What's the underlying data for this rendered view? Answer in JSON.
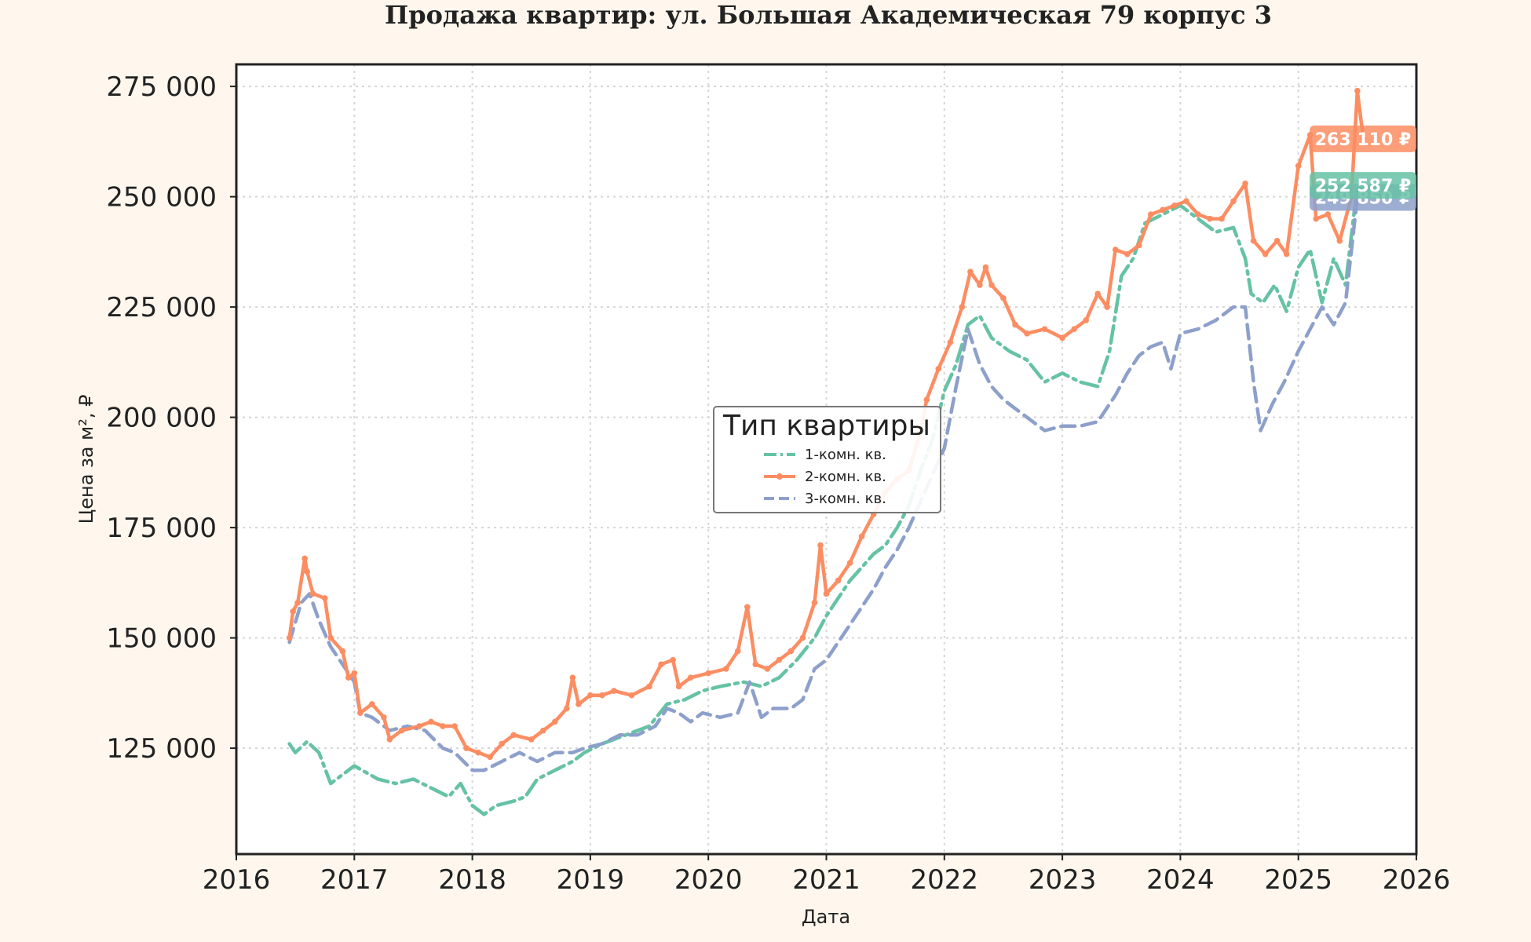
{
  "chart_data": {
    "type": "line",
    "title": "Продажа квартир: ул. Большая Академическая 79 корпус 3",
    "xlabel": "Дата",
    "ylabel": "Цена за м², ₽",
    "xlim": [
      2016.0,
      2026.0
    ],
    "ylim": [
      101000,
      280000
    ],
    "x_ticks": [
      "2016",
      "2017",
      "2018",
      "2019",
      "2020",
      "2021",
      "2022",
      "2023",
      "2024",
      "2025",
      "2026"
    ],
    "y_ticks": [
      "125 000",
      "150 000",
      "175 000",
      "200 000",
      "225 000",
      "250 000",
      "275 000"
    ],
    "grid": true,
    "legend": {
      "title": "Тип квартиры",
      "placement": "center"
    },
    "series": [
      {
        "name": "1-комн. кв.",
        "color": "#66c2a5",
        "style": "dashdot",
        "end_label": "252 587 ₽",
        "points": [
          [
            2016.45,
            126000
          ],
          [
            2016.5,
            124000
          ],
          [
            2016.6,
            126500
          ],
          [
            2016.7,
            124000
          ],
          [
            2016.8,
            117000
          ],
          [
            2016.9,
            119000
          ],
          [
            2017.0,
            121000
          ],
          [
            2017.2,
            118000
          ],
          [
            2017.35,
            117000
          ],
          [
            2017.5,
            118000
          ],
          [
            2017.65,
            116000
          ],
          [
            2017.8,
            114000
          ],
          [
            2017.9,
            117000
          ],
          [
            2018.0,
            112000
          ],
          [
            2018.1,
            110000
          ],
          [
            2018.2,
            112000
          ],
          [
            2018.35,
            113000
          ],
          [
            2018.45,
            114000
          ],
          [
            2018.55,
            118000
          ],
          [
            2018.7,
            120000
          ],
          [
            2018.85,
            122000
          ],
          [
            2018.95,
            124000
          ],
          [
            2019.1,
            126000
          ],
          [
            2019.3,
            128000
          ],
          [
            2019.5,
            130000
          ],
          [
            2019.65,
            135000
          ],
          [
            2019.8,
            136000
          ],
          [
            2019.95,
            138000
          ],
          [
            2020.1,
            139000
          ],
          [
            2020.3,
            140000
          ],
          [
            2020.45,
            139000
          ],
          [
            2020.6,
            141000
          ],
          [
            2020.75,
            145000
          ],
          [
            2020.9,
            150000
          ],
          [
            2021.0,
            155000
          ],
          [
            2021.1,
            159000
          ],
          [
            2021.2,
            163000
          ],
          [
            2021.3,
            166000
          ],
          [
            2021.4,
            169000
          ],
          [
            2021.5,
            171000
          ],
          [
            2021.6,
            175000
          ],
          [
            2021.7,
            180000
          ],
          [
            2021.8,
            188000
          ],
          [
            2021.9,
            195000
          ],
          [
            2022.0,
            206000
          ],
          [
            2022.1,
            212000
          ],
          [
            2022.2,
            221000
          ],
          [
            2022.3,
            223000
          ],
          [
            2022.4,
            218000
          ],
          [
            2022.55,
            215000
          ],
          [
            2022.7,
            213000
          ],
          [
            2022.85,
            208000
          ],
          [
            2023.0,
            210000
          ],
          [
            2023.15,
            208000
          ],
          [
            2023.3,
            207000
          ],
          [
            2023.4,
            215000
          ],
          [
            2023.5,
            232000
          ],
          [
            2023.6,
            236000
          ],
          [
            2023.7,
            244000
          ],
          [
            2023.85,
            246000
          ],
          [
            2024.0,
            248000
          ],
          [
            2024.15,
            245000
          ],
          [
            2024.3,
            242000
          ],
          [
            2024.45,
            243000
          ],
          [
            2024.55,
            236000
          ],
          [
            2024.6,
            228000
          ],
          [
            2024.7,
            226000
          ],
          [
            2024.8,
            230000
          ],
          [
            2024.9,
            224000
          ],
          [
            2025.0,
            234000
          ],
          [
            2025.1,
            238000
          ],
          [
            2025.2,
            226000
          ],
          [
            2025.3,
            236000
          ],
          [
            2025.4,
            230000
          ],
          [
            2025.5,
            252587
          ]
        ]
      },
      {
        "name": "2-комн. кв.",
        "color": "#fc8d62",
        "style": "solid-marker",
        "end_label": "263 110 ₽",
        "points": [
          [
            2016.45,
            150000
          ],
          [
            2016.48,
            156000
          ],
          [
            2016.52,
            158000
          ],
          [
            2016.58,
            168000
          ],
          [
            2016.6,
            165000
          ],
          [
            2016.65,
            160000
          ],
          [
            2016.75,
            159000
          ],
          [
            2016.8,
            150000
          ],
          [
            2016.9,
            147000
          ],
          [
            2016.95,
            141000
          ],
          [
            2017.0,
            142000
          ],
          [
            2017.05,
            133000
          ],
          [
            2017.15,
            135000
          ],
          [
            2017.25,
            132000
          ],
          [
            2017.3,
            127000
          ],
          [
            2017.4,
            129000
          ],
          [
            2017.55,
            130000
          ],
          [
            2017.65,
            131000
          ],
          [
            2017.75,
            130000
          ],
          [
            2017.85,
            130000
          ],
          [
            2017.95,
            125000
          ],
          [
            2018.05,
            124000
          ],
          [
            2018.15,
            123000
          ],
          [
            2018.25,
            126000
          ],
          [
            2018.35,
            128000
          ],
          [
            2018.5,
            127000
          ],
          [
            2018.6,
            129000
          ],
          [
            2018.7,
            131000
          ],
          [
            2018.8,
            134000
          ],
          [
            2018.85,
            141000
          ],
          [
            2018.9,
            135000
          ],
          [
            2019.0,
            137000
          ],
          [
            2019.1,
            137000
          ],
          [
            2019.2,
            138000
          ],
          [
            2019.35,
            137000
          ],
          [
            2019.5,
            139000
          ],
          [
            2019.6,
            144000
          ],
          [
            2019.7,
            145000
          ],
          [
            2019.75,
            139000
          ],
          [
            2019.85,
            141000
          ],
          [
            2020.0,
            142000
          ],
          [
            2020.15,
            143000
          ],
          [
            2020.25,
            147000
          ],
          [
            2020.33,
            157000
          ],
          [
            2020.4,
            144000
          ],
          [
            2020.5,
            143000
          ],
          [
            2020.6,
            145000
          ],
          [
            2020.7,
            147000
          ],
          [
            2020.8,
            150000
          ],
          [
            2020.9,
            158000
          ],
          [
            2020.95,
            171000
          ],
          [
            2021.0,
            160000
          ],
          [
            2021.1,
            163000
          ],
          [
            2021.2,
            167000
          ],
          [
            2021.3,
            173000
          ],
          [
            2021.4,
            178000
          ],
          [
            2021.5,
            183000
          ],
          [
            2021.6,
            186000
          ],
          [
            2021.7,
            188000
          ],
          [
            2021.8,
            197000
          ],
          [
            2021.85,
            204000
          ],
          [
            2021.95,
            211000
          ],
          [
            2022.05,
            217000
          ],
          [
            2022.15,
            225000
          ],
          [
            2022.22,
            233000
          ],
          [
            2022.3,
            230000
          ],
          [
            2022.35,
            234000
          ],
          [
            2022.4,
            230000
          ],
          [
            2022.5,
            227000
          ],
          [
            2022.6,
            221000
          ],
          [
            2022.7,
            219000
          ],
          [
            2022.85,
            220000
          ],
          [
            2023.0,
            218000
          ],
          [
            2023.1,
            220000
          ],
          [
            2023.2,
            222000
          ],
          [
            2023.3,
            228000
          ],
          [
            2023.38,
            225000
          ],
          [
            2023.45,
            238000
          ],
          [
            2023.55,
            237000
          ],
          [
            2023.65,
            239000
          ],
          [
            2023.75,
            246000
          ],
          [
            2023.85,
            247000
          ],
          [
            2023.95,
            248000
          ],
          [
            2024.05,
            249000
          ],
          [
            2024.15,
            246000
          ],
          [
            2024.25,
            245000
          ],
          [
            2024.35,
            245000
          ],
          [
            2024.45,
            249000
          ],
          [
            2024.55,
            253000
          ],
          [
            2024.62,
            240000
          ],
          [
            2024.72,
            237000
          ],
          [
            2024.82,
            240000
          ],
          [
            2024.9,
            237000
          ],
          [
            2025.0,
            257000
          ],
          [
            2025.1,
            264000
          ],
          [
            2025.15,
            245000
          ],
          [
            2025.25,
            246000
          ],
          [
            2025.35,
            240000
          ],
          [
            2025.45,
            250000
          ],
          [
            2025.5,
            274000
          ],
          [
            2025.55,
            263110
          ]
        ]
      },
      {
        "name": "3-комн. кв.",
        "color": "#8da0cb",
        "style": "dashed",
        "end_label": "249 850 ₽",
        "points": [
          [
            2016.45,
            149000
          ],
          [
            2016.55,
            158000
          ],
          [
            2016.62,
            160000
          ],
          [
            2016.7,
            154000
          ],
          [
            2016.8,
            148000
          ],
          [
            2016.9,
            144000
          ],
          [
            2017.0,
            140000
          ],
          [
            2017.05,
            133000
          ],
          [
            2017.15,
            132000
          ],
          [
            2017.3,
            129000
          ],
          [
            2017.45,
            130000
          ],
          [
            2017.6,
            129000
          ],
          [
            2017.75,
            125000
          ],
          [
            2017.85,
            124000
          ],
          [
            2018.0,
            120000
          ],
          [
            2018.1,
            120000
          ],
          [
            2018.25,
            122000
          ],
          [
            2018.4,
            124000
          ],
          [
            2018.55,
            122000
          ],
          [
            2018.7,
            124000
          ],
          [
            2018.85,
            124000
          ],
          [
            2018.95,
            125000
          ],
          [
            2019.1,
            126000
          ],
          [
            2019.25,
            128000
          ],
          [
            2019.4,
            128000
          ],
          [
            2019.55,
            130000
          ],
          [
            2019.65,
            134000
          ],
          [
            2019.75,
            133000
          ],
          [
            2019.85,
            131000
          ],
          [
            2019.95,
            133000
          ],
          [
            2020.1,
            132000
          ],
          [
            2020.25,
            133000
          ],
          [
            2020.35,
            140000
          ],
          [
            2020.45,
            132000
          ],
          [
            2020.55,
            134000
          ],
          [
            2020.7,
            134000
          ],
          [
            2020.8,
            136000
          ],
          [
            2020.9,
            143000
          ],
          [
            2021.0,
            145000
          ],
          [
            2021.1,
            149000
          ],
          [
            2021.2,
            153000
          ],
          [
            2021.3,
            157000
          ],
          [
            2021.4,
            161000
          ],
          [
            2021.5,
            166000
          ],
          [
            2021.6,
            170000
          ],
          [
            2021.7,
            175000
          ],
          [
            2021.8,
            181000
          ],
          [
            2021.9,
            187000
          ],
          [
            2022.0,
            193000
          ],
          [
            2022.1,
            207000
          ],
          [
            2022.2,
            220000
          ],
          [
            2022.3,
            212000
          ],
          [
            2022.4,
            207000
          ],
          [
            2022.5,
            204000
          ],
          [
            2022.6,
            202000
          ],
          [
            2022.7,
            200000
          ],
          [
            2022.85,
            197000
          ],
          [
            2023.0,
            198000
          ],
          [
            2023.15,
            198000
          ],
          [
            2023.3,
            199000
          ],
          [
            2023.45,
            205000
          ],
          [
            2023.55,
            210000
          ],
          [
            2023.65,
            214000
          ],
          [
            2023.75,
            216000
          ],
          [
            2023.85,
            217000
          ],
          [
            2023.92,
            211000
          ],
          [
            2024.0,
            219000
          ],
          [
            2024.15,
            220000
          ],
          [
            2024.3,
            222000
          ],
          [
            2024.45,
            225000
          ],
          [
            2024.55,
            225000
          ],
          [
            2024.62,
            208000
          ],
          [
            2024.68,
            197000
          ],
          [
            2024.78,
            203000
          ],
          [
            2024.88,
            208000
          ],
          [
            2025.0,
            215000
          ],
          [
            2025.1,
            220000
          ],
          [
            2025.2,
            225000
          ],
          [
            2025.3,
            221000
          ],
          [
            2025.4,
            226000
          ],
          [
            2025.5,
            249850
          ]
        ]
      }
    ]
  }
}
